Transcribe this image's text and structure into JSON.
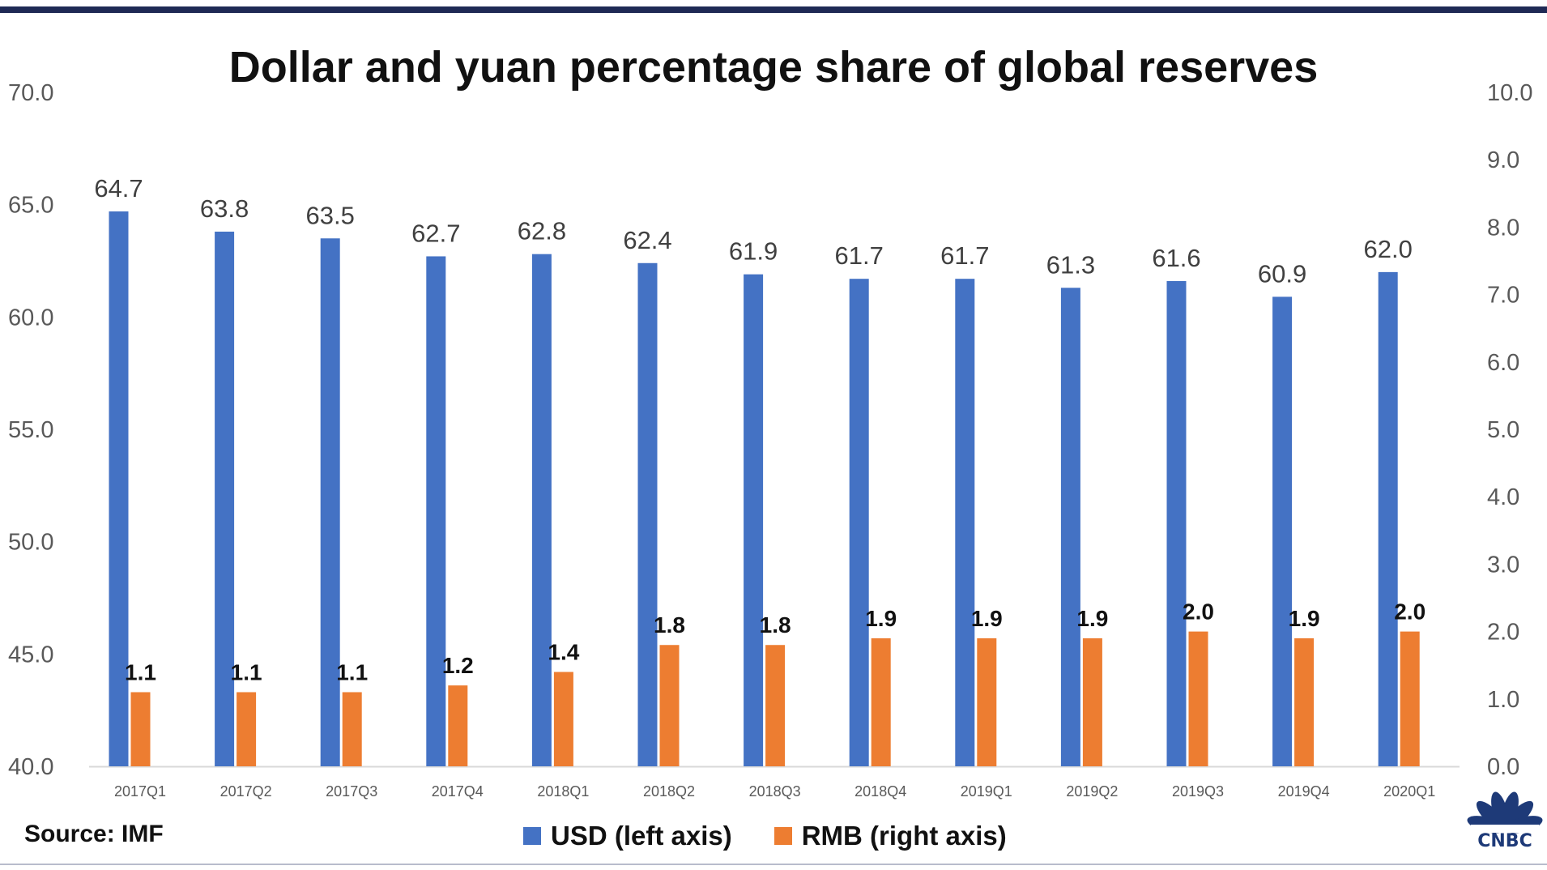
{
  "colors": {
    "usd": "#4472c4",
    "rmb": "#ed7d31",
    "frame": "#1f2a55",
    "logo": "#1e3a78"
  },
  "chart_data": {
    "type": "bar",
    "title": "Dollar and yuan percentage share of global reserves",
    "categories": [
      "2017Q1",
      "2017Q2",
      "2017Q3",
      "2017Q4",
      "2018Q1",
      "2018Q2",
      "2018Q3",
      "2018Q4",
      "2019Q1",
      "2019Q2",
      "2019Q3",
      "2019Q4",
      "2020Q1"
    ],
    "series": [
      {
        "name": "USD (left axis)",
        "axis": "left",
        "values": [
          64.7,
          63.8,
          63.5,
          62.7,
          62.8,
          62.4,
          61.9,
          61.7,
          61.7,
          61.3,
          61.6,
          60.9,
          62.0
        ],
        "labels": [
          "64.7",
          "63.8",
          "63.5",
          "62.7",
          "62.8",
          "62.4",
          "61.9",
          "61.7",
          "61.7",
          "61.3",
          "61.6",
          "60.9",
          "62.0"
        ]
      },
      {
        "name": "RMB (right axis)",
        "axis": "right",
        "values": [
          1.1,
          1.1,
          1.1,
          1.2,
          1.4,
          1.8,
          1.8,
          1.9,
          1.9,
          1.9,
          2.0,
          1.9,
          2.0
        ],
        "labels": [
          "1.1",
          "1.1",
          "1.1",
          "1.2",
          "1.4",
          "1.8",
          "1.8",
          "1.9",
          "1.9",
          "1.9",
          "2.0",
          "1.9",
          "2.0"
        ]
      }
    ],
    "left_axis": {
      "ylim": [
        40,
        70
      ],
      "ticks": [
        40,
        45,
        50,
        55,
        60,
        65,
        70
      ],
      "tick_labels": [
        "40.0",
        "45.0",
        "50.0",
        "55.0",
        "60.0",
        "65.0",
        "70.0"
      ]
    },
    "right_axis": {
      "ylim": [
        0,
        10
      ],
      "ticks": [
        0,
        1,
        2,
        3,
        4,
        5,
        6,
        7,
        8,
        9,
        10
      ],
      "tick_labels": [
        "0.0",
        "1.0",
        "2.0",
        "3.0",
        "4.0",
        "5.0",
        "6.0",
        "7.0",
        "8.0",
        "9.0",
        "10.0"
      ]
    },
    "grid": false,
    "legend_position": "bottom-center"
  },
  "footer": {
    "source": "Source: IMF",
    "logo_text": "CNBC"
  },
  "legend": {
    "usd_label": "USD (left axis)",
    "rmb_label": "RMB (right axis)"
  }
}
